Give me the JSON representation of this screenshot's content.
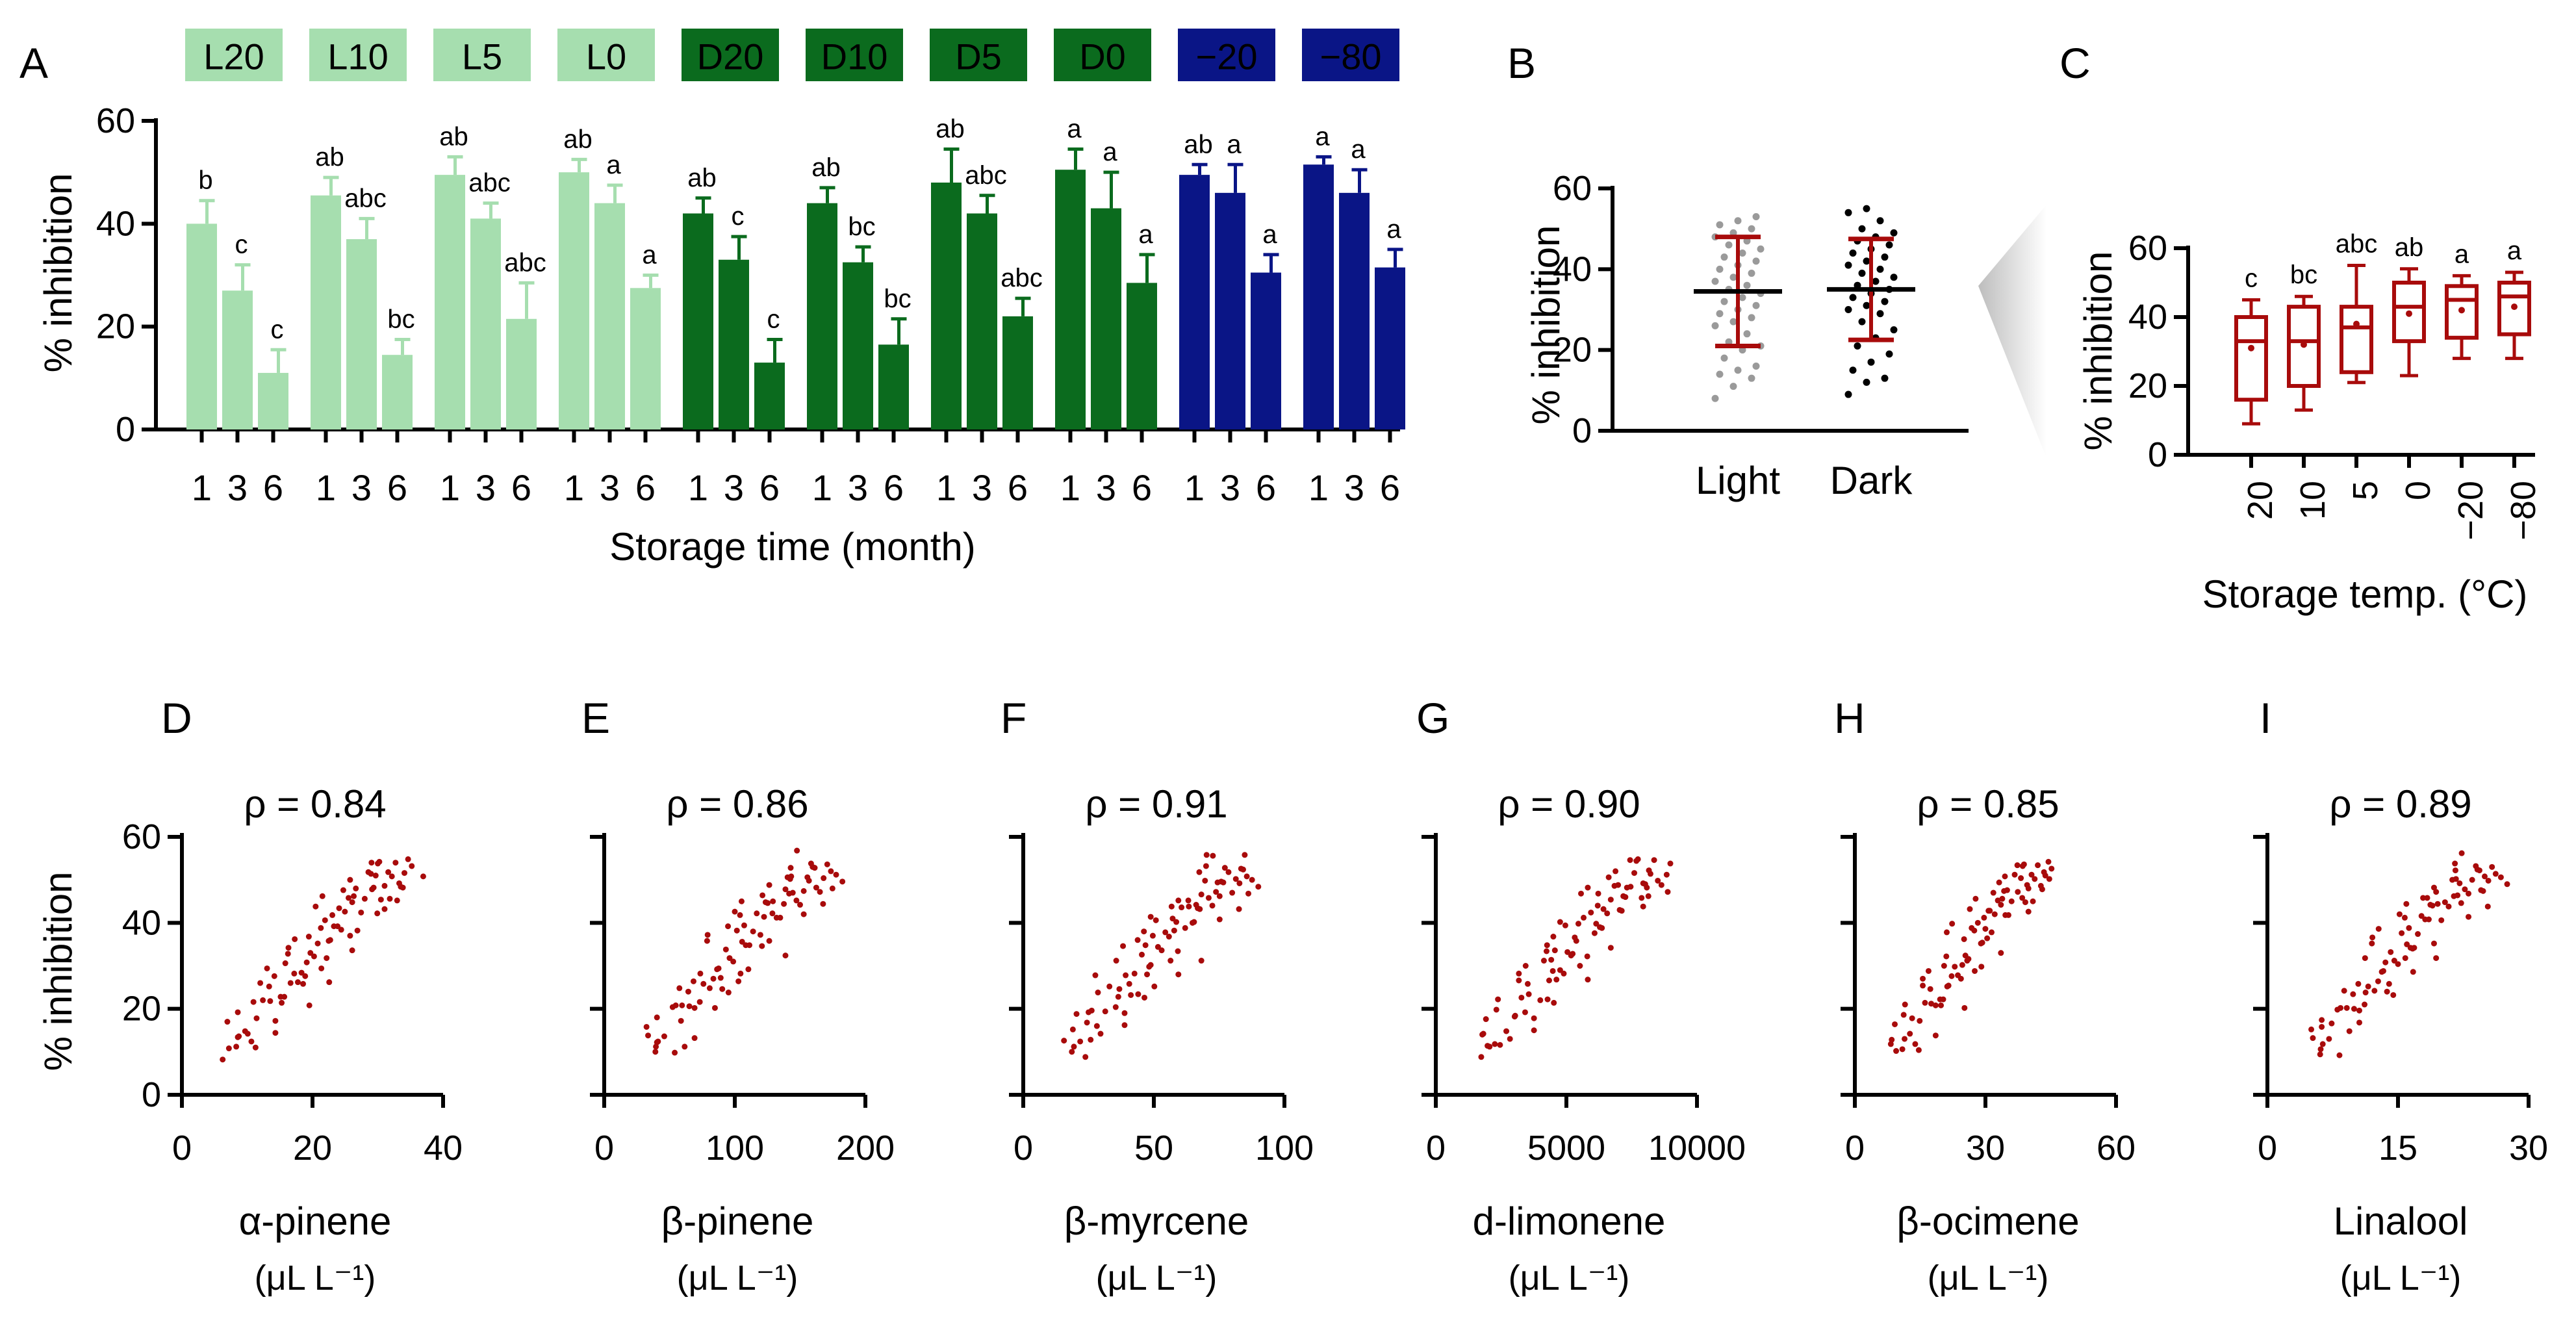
{
  "colors": {
    "light": "#a6deaf",
    "dark": "#0b6b1e",
    "frozen": "#0a1586",
    "red": "#a80b0b",
    "grey": "#9a9a9a",
    "black": "#000000"
  },
  "panel_letters": [
    "A",
    "B",
    "C",
    "D",
    "E",
    "F",
    "G",
    "H",
    "I"
  ],
  "chart_data": [
    {
      "panel": "A",
      "type": "bar",
      "title": "",
      "xlabel": "Storage time (month)",
      "ylabel": "% inhibition",
      "ylim": [
        0,
        60
      ],
      "yticks": [
        0,
        20,
        40,
        60
      ],
      "categories": [
        "1",
        "3",
        "6"
      ],
      "series": [
        {
          "name": "L20",
          "group": "light",
          "values": [
            40.0,
            27.0,
            11.0
          ],
          "errors": [
            4.5,
            5.0,
            4.5
          ],
          "letters": [
            "b",
            "c",
            "c"
          ]
        },
        {
          "name": "L10",
          "group": "light",
          "values": [
            45.5,
            37.0,
            14.5
          ],
          "errors": [
            3.5,
            4.0,
            3.0
          ],
          "letters": [
            "ab",
            "abc",
            "bc"
          ]
        },
        {
          "name": "L5",
          "group": "light",
          "values": [
            49.5,
            41.0,
            21.5
          ],
          "errors": [
            3.5,
            3.0,
            7.0
          ],
          "letters": [
            "ab",
            "abc",
            "abc"
          ]
        },
        {
          "name": "L0",
          "group": "light",
          "values": [
            50.0,
            44.0,
            27.5
          ],
          "errors": [
            2.5,
            3.5,
            2.5
          ],
          "letters": [
            "ab",
            "a",
            "a"
          ]
        },
        {
          "name": "D20",
          "group": "dark",
          "values": [
            42.0,
            33.0,
            13.0
          ],
          "errors": [
            3.0,
            4.5,
            4.5
          ],
          "letters": [
            "ab",
            "c",
            "c"
          ]
        },
        {
          "name": "D10",
          "group": "dark",
          "values": [
            44.0,
            32.5,
            16.5
          ],
          "errors": [
            3.0,
            3.0,
            5.0
          ],
          "letters": [
            "ab",
            "bc",
            "bc"
          ]
        },
        {
          "name": "D5",
          "group": "dark",
          "values": [
            48.0,
            42.0,
            22.0
          ],
          "errors": [
            6.5,
            3.5,
            3.5
          ],
          "letters": [
            "ab",
            "abc",
            "abc"
          ]
        },
        {
          "name": "D0",
          "group": "dark",
          "values": [
            50.5,
            43.0,
            28.5
          ],
          "errors": [
            4.0,
            7.0,
            5.5
          ],
          "letters": [
            "a",
            "a",
            "a"
          ]
        },
        {
          "name": "−20",
          "group": "frozen",
          "values": [
            49.5,
            46.0,
            30.5
          ],
          "errors": [
            2.0,
            5.5,
            3.5
          ],
          "letters": [
            "ab",
            "a",
            "a"
          ]
        },
        {
          "name": "−80",
          "group": "frozen",
          "values": [
            51.5,
            46.0,
            31.5
          ],
          "errors": [
            1.5,
            4.5,
            3.5
          ],
          "letters": [
            "a",
            "a",
            "a"
          ]
        }
      ]
    },
    {
      "panel": "B",
      "type": "scatter",
      "title": "",
      "xlabel": "",
      "ylabel": "% inhibition",
      "ylim": [
        0,
        60
      ],
      "yticks": [
        0,
        20,
        40,
        60
      ],
      "categories": [
        "Light",
        "Dark"
      ],
      "groups": [
        {
          "name": "Light",
          "mean": 34.5,
          "sd": 13.5,
          "points": [
            8,
            11,
            13,
            14,
            15,
            16,
            18,
            20,
            21,
            22,
            24,
            26,
            27,
            28,
            29,
            30,
            31,
            32,
            33,
            34,
            35,
            36,
            37,
            38,
            39,
            40,
            41,
            42,
            43,
            44,
            45,
            46,
            47,
            48,
            49,
            50,
            51,
            52,
            53
          ]
        },
        {
          "name": "Dark",
          "mean": 35.0,
          "sd": 12.5,
          "points": [
            9,
            12,
            13,
            15,
            17,
            19,
            21,
            23,
            25,
            27,
            29,
            30,
            31,
            32,
            33,
            34,
            35,
            36,
            37,
            38,
            39,
            40,
            41,
            42,
            43,
            44,
            45,
            46,
            47,
            48,
            49,
            50,
            52,
            54,
            55
          ]
        }
      ]
    },
    {
      "panel": "C",
      "type": "box",
      "title": "",
      "xlabel": "Storage temp. (°C)",
      "ylabel": "% inhibition",
      "ylim": [
        0,
        60
      ],
      "yticks": [
        0,
        20,
        40,
        60
      ],
      "categories": [
        "20",
        "10",
        "5",
        "0",
        "−20",
        "−80"
      ],
      "boxes": [
        {
          "min": 9,
          "q1": 16,
          "median": 33,
          "q3": 40,
          "max": 45,
          "mean": 31,
          "letter": "c"
        },
        {
          "min": 13,
          "q1": 20,
          "median": 33,
          "q3": 43,
          "max": 46,
          "mean": 32,
          "letter": "bc"
        },
        {
          "min": 21,
          "q1": 24,
          "median": 37,
          "q3": 43,
          "max": 55,
          "mean": 38,
          "letter": "abc"
        },
        {
          "min": 23,
          "q1": 33,
          "median": 43,
          "q3": 50,
          "max": 54,
          "mean": 41,
          "letter": "ab"
        },
        {
          "min": 28,
          "q1": 34,
          "median": 45,
          "q3": 49,
          "max": 52,
          "mean": 42,
          "letter": "a"
        },
        {
          "min": 28,
          "q1": 35,
          "median": 46,
          "q3": 50,
          "max": 53,
          "mean": 43,
          "letter": "a"
        }
      ]
    },
    {
      "panel": "D",
      "type": "scatter",
      "title": "ρ = 0.84",
      "xlabel": "α-pinene",
      "xunit": "(μL L⁻¹)",
      "ylabel": "% inhibition",
      "xlim": [
        0,
        40
      ],
      "xticks": [
        0,
        20,
        40
      ],
      "ylim": [
        0,
        60
      ],
      "yticks": [
        0,
        20,
        40,
        60
      ]
    },
    {
      "panel": "E",
      "type": "scatter",
      "title": "ρ = 0.86",
      "xlabel": "β-pinene",
      "xunit": "(μL L⁻¹)",
      "ylabel": "",
      "xlim": [
        0,
        200
      ],
      "xticks": [
        0,
        100,
        200
      ],
      "ylim": [
        0,
        60
      ],
      "yticks": [
        0,
        20,
        40,
        60
      ]
    },
    {
      "panel": "F",
      "type": "scatter",
      "title": "ρ = 0.91",
      "xlabel": "β-myrcene",
      "xunit": "(μL L⁻¹)",
      "ylabel": "",
      "xlim": [
        0,
        100
      ],
      "xticks": [
        0,
        50,
        100
      ],
      "ylim": [
        0,
        60
      ],
      "yticks": [
        0,
        20,
        40,
        60
      ]
    },
    {
      "panel": "G",
      "type": "scatter",
      "title": "ρ = 0.90",
      "xlabel": "d-limonene",
      "xunit": "(μL L⁻¹)",
      "ylabel": "",
      "xlim": [
        0,
        10000
      ],
      "xticks": [
        0,
        5000,
        10000
      ],
      "ylim": [
        0,
        60
      ],
      "yticks": [
        0,
        20,
        40,
        60
      ]
    },
    {
      "panel": "H",
      "type": "scatter",
      "title": "ρ = 0.85",
      "xlabel": "β-ocimene",
      "xunit": "(μL L⁻¹)",
      "ylabel": "",
      "xlim": [
        0,
        60
      ],
      "xticks": [
        0,
        30,
        60
      ],
      "ylim": [
        0,
        60
      ],
      "yticks": [
        0,
        20,
        40,
        60
      ]
    },
    {
      "panel": "I",
      "type": "scatter",
      "title": "ρ = 0.89",
      "xlabel": "Linalool",
      "xunit": "(μL L⁻¹)",
      "ylabel": "",
      "xlim": [
        0,
        30
      ],
      "xticks": [
        0,
        15,
        30
      ],
      "ylim": [
        0,
        60
      ],
      "yticks": [
        0,
        20,
        40,
        60
      ]
    }
  ],
  "correlation_points": [
    [
      0.18,
      10
    ],
    [
      0.18,
      12
    ],
    [
      0.19,
      14
    ],
    [
      0.18,
      17
    ],
    [
      0.2,
      13
    ],
    [
      0.22,
      10
    ],
    [
      0.23,
      13
    ],
    [
      0.27,
      16
    ],
    [
      0.28,
      19
    ],
    [
      0.29,
      13
    ],
    [
      0.31,
      22
    ],
    [
      0.33,
      27
    ],
    [
      0.34,
      24
    ],
    [
      0.36,
      21
    ],
    [
      0.37,
      19
    ],
    [
      0.38,
      24
    ],
    [
      0.4,
      22
    ],
    [
      0.41,
      26
    ],
    [
      0.42,
      30
    ],
    [
      0.43,
      27
    ],
    [
      0.44,
      24
    ],
    [
      0.45,
      28
    ],
    [
      0.46,
      32
    ],
    [
      0.47,
      29
    ],
    [
      0.48,
      33
    ],
    [
      0.49,
      27
    ],
    [
      0.5,
      31
    ],
    [
      0.51,
      35
    ],
    [
      0.52,
      37
    ],
    [
      0.53,
      33
    ],
    [
      0.54,
      30
    ],
    [
      0.55,
      36
    ],
    [
      0.56,
      40
    ],
    [
      0.57,
      38
    ],
    [
      0.58,
      34
    ],
    [
      0.59,
      41
    ],
    [
      0.6,
      43
    ],
    [
      0.61,
      39
    ],
    [
      0.62,
      37
    ],
    [
      0.63,
      42
    ],
    [
      0.64,
      45
    ],
    [
      0.65,
      44
    ],
    [
      0.66,
      40
    ],
    [
      0.67,
      46
    ],
    [
      0.68,
      43
    ],
    [
      0.69,
      48
    ],
    [
      0.7,
      45
    ],
    [
      0.71,
      47
    ],
    [
      0.72,
      50
    ],
    [
      0.73,
      44
    ],
    [
      0.74,
      49
    ],
    [
      0.75,
      46
    ],
    [
      0.76,
      51
    ],
    [
      0.77,
      48
    ],
    [
      0.78,
      53
    ],
    [
      0.79,
      50
    ],
    [
      0.8,
      47
    ],
    [
      0.81,
      52
    ],
    [
      0.82,
      49
    ],
    [
      0.83,
      54
    ],
    [
      0.84,
      51
    ],
    [
      0.85,
      48
    ],
    [
      0.86,
      53
    ],
    [
      0.87,
      50
    ],
    [
      0.75,
      55
    ],
    [
      0.7,
      52
    ],
    [
      0.65,
      50
    ],
    [
      0.6,
      47
    ],
    [
      0.55,
      45
    ],
    [
      0.5,
      42
    ],
    [
      0.45,
      38
    ],
    [
      0.4,
      34
    ],
    [
      0.35,
      30
    ],
    [
      0.3,
      26
    ],
    [
      0.25,
      21
    ],
    [
      0.22,
      18
    ],
    [
      0.32,
      20
    ],
    [
      0.42,
      36
    ],
    [
      0.52,
      40
    ],
    [
      0.62,
      44
    ],
    [
      0.72,
      54
    ],
    [
      0.82,
      45
    ],
    [
      0.88,
      52
    ],
    [
      0.9,
      49
    ],
    [
      0.57,
      28
    ],
    [
      0.47,
      22
    ],
    [
      0.37,
      15
    ],
    [
      0.27,
      11
    ],
    [
      0.67,
      33
    ],
    [
      0.77,
      42
    ]
  ]
}
